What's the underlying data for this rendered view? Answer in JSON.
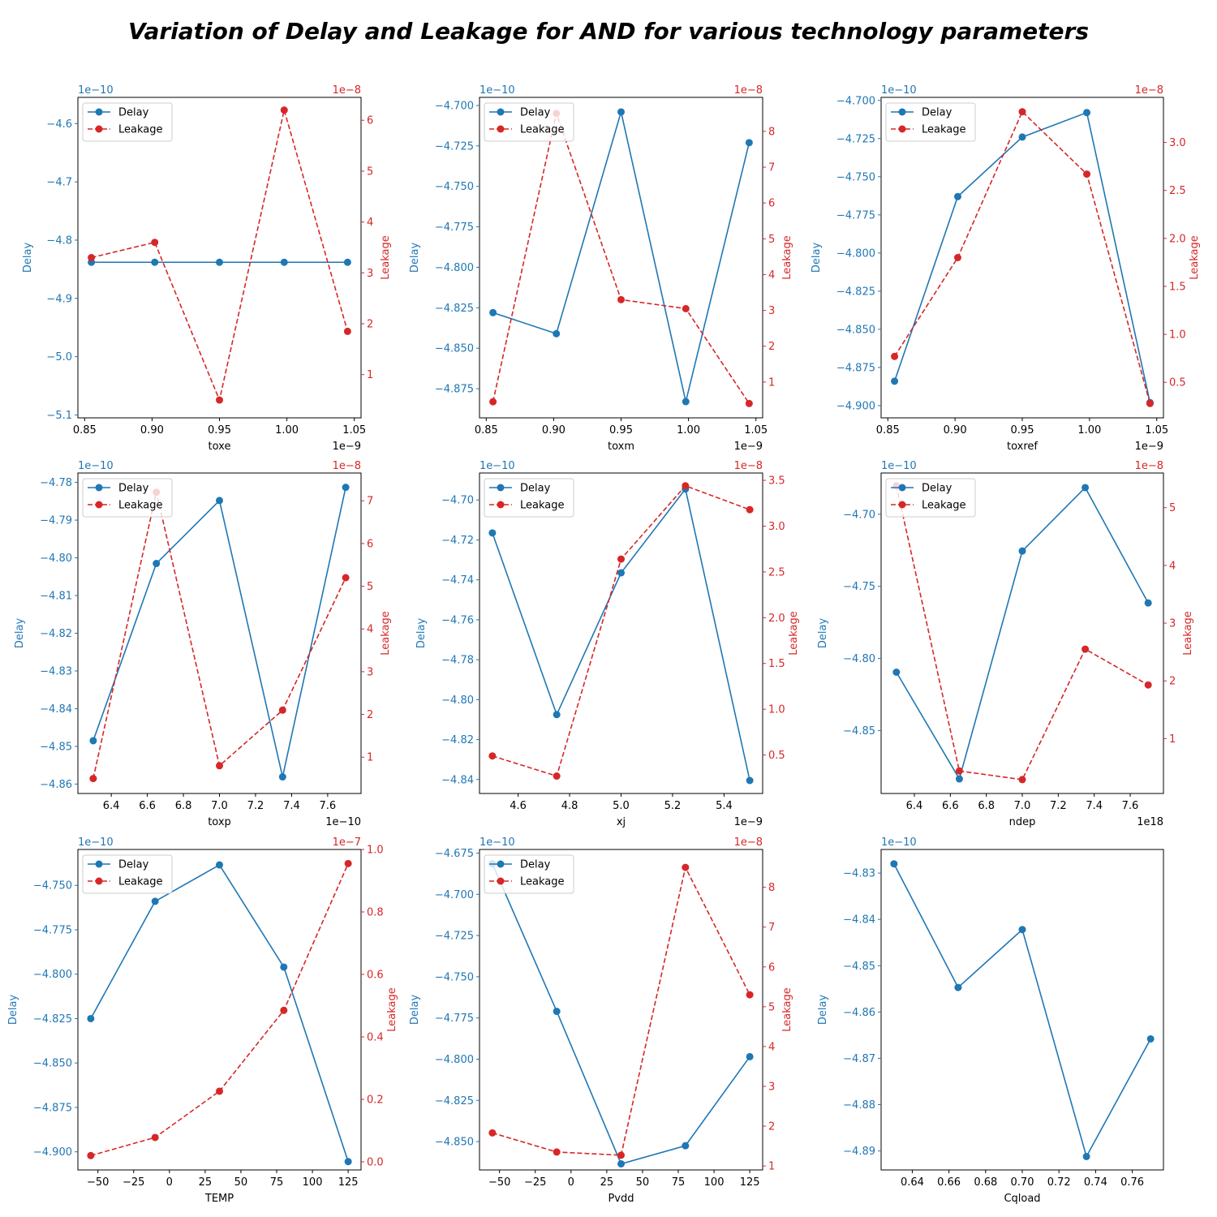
{
  "title": "Variation of Delay and Leakage for AND for various technology parameters",
  "colors": {
    "delay": "#1f77b4",
    "leakage": "#d62728",
    "axis": "#000000"
  },
  "chart_data": [
    {
      "type": "line",
      "xlabel": "toxe",
      "ylabel_left": "Delay",
      "ylabel_right": "Leakage",
      "x_offset": "1e−9",
      "y_offset_left": "1e−10",
      "y_offset_right": "1e−8",
      "xlim": [
        0.845,
        1.055
      ],
      "xticks": [
        0.85,
        0.9,
        0.95,
        1.0,
        1.05
      ],
      "xdec": 2,
      "ylim": [
        -5.105,
        -4.555
      ],
      "yticks": [
        -4.6,
        -4.7,
        -4.8,
        -4.9,
        -5.0,
        -5.1
      ],
      "ydec": 1,
      "y2lim": [
        0.15,
        6.45
      ],
      "y2ticks": [
        1,
        2,
        3,
        4,
        5,
        6
      ],
      "y2dec": 0,
      "legend": "upper left",
      "series": [
        {
          "name": "Delay",
          "axis": "left",
          "style": "solid",
          "x": [
            0.855,
            0.902,
            0.95,
            0.998,
            1.045
          ],
          "y": [
            -4.838,
            -4.838,
            -4.838,
            -4.838,
            -4.838
          ]
        },
        {
          "name": "Leakage",
          "axis": "right",
          "style": "dashed",
          "x": [
            0.855,
            0.902,
            0.95,
            0.998,
            1.045
          ],
          "y": [
            3.3,
            3.6,
            0.5,
            6.2,
            1.85
          ]
        }
      ]
    },
    {
      "type": "line",
      "xlabel": "toxm",
      "ylabel_left": "Delay",
      "ylabel_right": "Leakage",
      "x_offset": "1e−9",
      "y_offset_left": "1e−10",
      "y_offset_right": "1e−8",
      "xlim": [
        0.845,
        1.055
      ],
      "xticks": [
        0.85,
        0.9,
        0.95,
        1.0,
        1.05
      ],
      "xdec": 2,
      "ylim": [
        -4.893,
        -4.695
      ],
      "yticks": [
        -4.7,
        -4.725,
        -4.75,
        -4.775,
        -4.8,
        -4.825,
        -4.85,
        -4.875
      ],
      "ydec": 3,
      "y2lim": [
        0.0,
        8.95
      ],
      "y2ticks": [
        1,
        2,
        3,
        4,
        5,
        6,
        7,
        8
      ],
      "y2dec": 0,
      "legend": "upper left",
      "series": [
        {
          "name": "Delay",
          "axis": "left",
          "style": "solid",
          "x": [
            0.855,
            0.902,
            0.95,
            0.998,
            1.045
          ],
          "y": [
            -4.828,
            -4.841,
            -4.704,
            -4.883,
            -4.723
          ]
        },
        {
          "name": "Leakage",
          "axis": "right",
          "style": "dashed",
          "x": [
            0.855,
            0.902,
            0.95,
            0.998,
            1.045
          ],
          "y": [
            0.45,
            8.5,
            3.3,
            3.05,
            0.4
          ]
        }
      ]
    },
    {
      "type": "line",
      "xlabel": "toxref",
      "ylabel_left": "Delay",
      "ylabel_right": "Leakage",
      "x_offset": "1e−9",
      "y_offset_left": "1e−10",
      "y_offset_right": "1e−8",
      "xlim": [
        0.845,
        1.055
      ],
      "xticks": [
        0.85,
        0.9,
        0.95,
        1.0,
        1.05
      ],
      "xdec": 2,
      "ylim": [
        -4.908,
        -4.698
      ],
      "yticks": [
        -4.7,
        -4.725,
        -4.75,
        -4.775,
        -4.8,
        -4.825,
        -4.85,
        -4.875,
        -4.9
      ],
      "ydec": 3,
      "y2lim": [
        0.13,
        3.47
      ],
      "y2ticks": [
        0.5,
        1.0,
        1.5,
        2.0,
        2.5,
        3.0
      ],
      "y2dec": 1,
      "legend": "upper left",
      "series": [
        {
          "name": "Delay",
          "axis": "left",
          "style": "solid",
          "x": [
            0.855,
            0.902,
            0.95,
            0.998,
            1.045
          ],
          "y": [
            -4.884,
            -4.763,
            -4.724,
            -4.708,
            -4.898
          ]
        },
        {
          "name": "Leakage",
          "axis": "right",
          "style": "dashed",
          "x": [
            0.855,
            0.902,
            0.95,
            0.998,
            1.045
          ],
          "y": [
            0.77,
            1.8,
            3.32,
            2.67,
            0.28
          ]
        }
      ]
    },
    {
      "type": "line",
      "xlabel": "toxp",
      "ylabel_left": "Delay",
      "ylabel_right": "Leakage",
      "x_offset": "1e−10",
      "y_offset_left": "1e−10",
      "y_offset_right": "1e−8",
      "xlim": [
        6.215,
        7.785
      ],
      "xticks": [
        6.4,
        6.6,
        6.8,
        7.0,
        7.2,
        7.4,
        7.6
      ],
      "xdec": 1,
      "ylim": [
        -4.8625,
        -4.7775
      ],
      "yticks": [
        -4.78,
        -4.79,
        -4.8,
        -4.81,
        -4.82,
        -4.83,
        -4.84,
        -4.85,
        -4.86
      ],
      "ydec": 2,
      "y2lim": [
        0.15,
        7.65
      ],
      "y2ticks": [
        1,
        2,
        3,
        4,
        5,
        6,
        7
      ],
      "y2dec": 0,
      "legend": "upper left",
      "series": [
        {
          "name": "Delay",
          "axis": "left",
          "style": "solid",
          "x": [
            6.3,
            6.65,
            7.0,
            7.35,
            7.7
          ],
          "y": [
            -4.8485,
            -4.8015,
            -4.7848,
            -4.8581,
            -4.7813
          ]
        },
        {
          "name": "Leakage",
          "axis": "right",
          "style": "dashed",
          "x": [
            6.3,
            6.65,
            7.0,
            7.35,
            7.7
          ],
          "y": [
            0.5,
            7.2,
            0.8,
            2.1,
            5.2
          ]
        }
      ]
    },
    {
      "type": "line",
      "xlabel": "xj",
      "ylabel_left": "Delay",
      "ylabel_right": "Leakage",
      "x_offset": "1e−9",
      "y_offset_left": "1e−10",
      "y_offset_right": "1e−8",
      "xlim": [
        4.45,
        5.55
      ],
      "xticks": [
        4.6,
        4.8,
        5.0,
        5.2,
        5.4
      ],
      "xdec": 1,
      "ylim": [
        -4.847,
        -4.6865
      ],
      "yticks": [
        -4.7,
        -4.72,
        -4.74,
        -4.76,
        -4.78,
        -4.8,
        -4.82,
        -4.84
      ],
      "ydec": 2,
      "y2lim": [
        0.08,
        3.58
      ],
      "y2ticks": [
        0.5,
        1.0,
        1.5,
        2.0,
        2.5,
        3.0,
        3.5
      ],
      "y2dec": 1,
      "legend": "upper left",
      "series": [
        {
          "name": "Delay",
          "axis": "left",
          "style": "solid",
          "x": [
            4.5,
            4.75,
            5.0,
            5.25,
            5.5
          ],
          "y": [
            -4.7165,
            -4.8075,
            -4.7365,
            -4.6945,
            -4.8405
          ]
        },
        {
          "name": "Leakage",
          "axis": "right",
          "style": "dashed",
          "x": [
            4.5,
            4.75,
            5.0,
            5.25,
            5.5
          ],
          "y": [
            0.49,
            0.27,
            2.64,
            3.44,
            3.18
          ]
        }
      ]
    },
    {
      "type": "line",
      "xlabel": "ndep",
      "ylabel_left": "Delay",
      "ylabel_right": "Leakage",
      "x_offset": "1e18",
      "y_offset_left": "1e−10",
      "y_offset_right": "1e−8",
      "xlim": [
        6.215,
        7.785
      ],
      "xticks": [
        6.4,
        6.6,
        6.8,
        7.0,
        7.2,
        7.4,
        7.6
      ],
      "xdec": 1,
      "ylim": [
        -4.8936,
        -4.6714
      ],
      "yticks": [
        -4.7,
        -4.75,
        -4.8,
        -4.85
      ],
      "ydec": 2,
      "y2lim": [
        0.05,
        5.6
      ],
      "y2ticks": [
        1,
        2,
        3,
        4,
        5
      ],
      "y2dec": 0,
      "legend": "upper left",
      "series": [
        {
          "name": "Delay",
          "axis": "left",
          "style": "solid",
          "x": [
            6.3,
            6.65,
            7.0,
            7.35,
            7.7
          ],
          "y": [
            -4.8095,
            -4.8835,
            -4.7255,
            -4.6815,
            -4.7615
          ]
        },
        {
          "name": "Leakage",
          "axis": "right",
          "style": "dashed",
          "x": [
            6.3,
            6.65,
            7.0,
            7.35,
            7.7
          ],
          "y": [
            5.38,
            0.44,
            0.29,
            2.55,
            1.93
          ]
        }
      ]
    },
    {
      "type": "line",
      "xlabel": "TEMP",
      "ylabel_left": "Delay",
      "ylabel_right": "Leakage",
      "x_offset": "",
      "y_offset_left": "1e−10",
      "y_offset_right": "1e−7",
      "xlim": [
        -64,
        134
      ],
      "xticks": [
        -50,
        -25,
        0,
        25,
        50,
        75,
        100,
        125
      ],
      "xdec": 0,
      "ylim": [
        -4.9102,
        -4.7298
      ],
      "yticks": [
        -4.75,
        -4.775,
        -4.8,
        -4.825,
        -4.85,
        -4.875,
        -4.9
      ],
      "ydec": 3,
      "y2lim": [
        -0.026,
        1.0
      ],
      "y2ticks": [
        0.0,
        0.2,
        0.4,
        0.6,
        0.8,
        1.0
      ],
      "y2dec": 1,
      "legend": "upper left",
      "series": [
        {
          "name": "Delay",
          "axis": "left",
          "style": "solid",
          "x": [
            -55,
            -10,
            35,
            80,
            125
          ],
          "y": [
            -4.825,
            -4.759,
            -4.7385,
            -4.796,
            -4.9055
          ]
        },
        {
          "name": "Leakage",
          "axis": "right",
          "style": "dashed",
          "x": [
            -55,
            -10,
            35,
            80,
            125
          ],
          "y": [
            0.02,
            0.078,
            0.226,
            0.485,
            0.955
          ]
        }
      ]
    },
    {
      "type": "line",
      "xlabel": "Pvdd",
      "ylabel_left": "Delay",
      "ylabel_right": "Leakage",
      "x_offset": "",
      "y_offset_left": "1e−10",
      "y_offset_right": "1e−8",
      "xlim": [
        -64,
        134
      ],
      "xticks": [
        -50,
        -25,
        0,
        25,
        50,
        75,
        100,
        125
      ],
      "xdec": 0,
      "ylim": [
        -4.8672,
        -4.6728
      ],
      "yticks": [
        -4.675,
        -4.7,
        -4.725,
        -4.75,
        -4.775,
        -4.8,
        -4.825,
        -4.85
      ],
      "ydec": 3,
      "y2lim": [
        0.9,
        8.95
      ],
      "y2ticks": [
        1,
        2,
        3,
        4,
        5,
        6,
        7,
        8
      ],
      "y2dec": 0,
      "legend": "upper left",
      "series": [
        {
          "name": "Delay",
          "axis": "left",
          "style": "solid",
          "x": [
            -55,
            -10,
            35,
            80,
            125
          ],
          "y": [
            -4.6815,
            -4.771,
            -4.8635,
            -4.8525,
            -4.7985
          ]
        },
        {
          "name": "Leakage",
          "axis": "right",
          "style": "dashed",
          "x": [
            -55,
            -10,
            35,
            80,
            125
          ],
          "y": [
            1.83,
            1.35,
            1.27,
            8.5,
            5.3
          ]
        }
      ]
    },
    {
      "type": "line",
      "xlabel": "Cqload",
      "ylabel_left": "Delay",
      "ylabel_right": "",
      "x_offset": "",
      "y_offset_left": "1e−10",
      "y_offset_right": "",
      "xlim": [
        0.623,
        0.777
      ],
      "xticks": [
        0.64,
        0.66,
        0.68,
        0.7,
        0.72,
        0.74,
        0.76
      ],
      "xdec": 2,
      "ylim": [
        -4.8941,
        -4.8249
      ],
      "yticks": [
        -4.83,
        -4.84,
        -4.85,
        -4.86,
        -4.87,
        -4.88,
        -4.89
      ],
      "ydec": 2,
      "y2lim": null,
      "y2ticks": [],
      "y2dec": 0,
      "legend": "none",
      "series": [
        {
          "name": "Delay",
          "axis": "left",
          "style": "solid",
          "x": [
            0.63,
            0.665,
            0.7,
            0.735,
            0.77
          ],
          "y": [
            -4.828,
            -4.8547,
            -4.8422,
            -4.8912,
            -4.8658
          ]
        }
      ]
    }
  ]
}
